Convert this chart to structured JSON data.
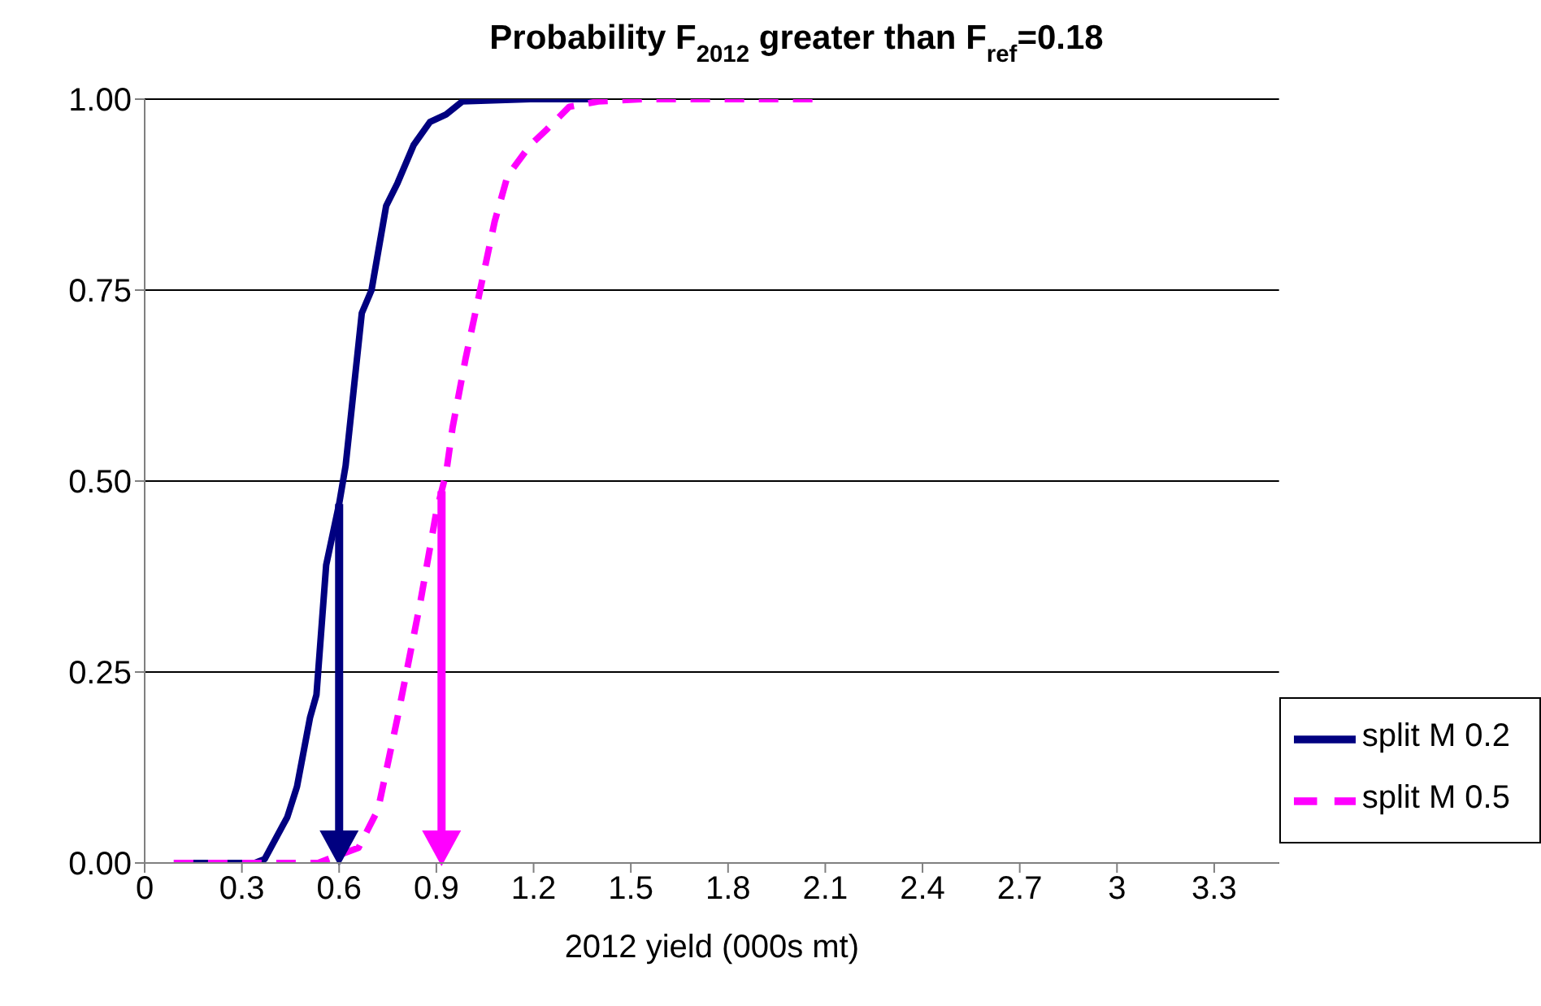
{
  "chart_data": {
    "type": "line",
    "title": "Probability F$_{2012}$ greater than F$_{ref}$=0.18",
    "xlabel": "2012 yield  (000s mt)",
    "xlim": [
      0,
      3.5
    ],
    "xticks": [
      0,
      0.3,
      0.6,
      0.9,
      1.2,
      1.5,
      1.8,
      2.1,
      2.4,
      2.7,
      3,
      3.3
    ],
    "ylim": [
      0,
      1
    ],
    "yticks": [
      {
        "value": 0,
        "label": "0.00"
      },
      {
        "value": 0.25,
        "label": "0.25"
      },
      {
        "value": 0.5,
        "label": "0.50"
      },
      {
        "value": 0.75,
        "label": "0.75"
      },
      {
        "value": 1,
        "label": "1.00"
      }
    ],
    "grid": "y",
    "legend": "bottom right",
    "marker": "none",
    "series": [
      {
        "name": "split M 0.2",
        "color": "#000080",
        "line_style": "solid",
        "x": [
          0.09,
          0.34,
          0.37,
          0.44,
          0.47,
          0.51,
          0.53,
          0.56,
          0.6,
          0.62,
          0.67,
          0.7,
          0.745,
          0.78,
          0.83,
          0.88,
          0.93,
          0.98,
          1.19,
          1.4
        ],
        "values": [
          0,
          0,
          0.005,
          0.06,
          0.1,
          0.19,
          0.22,
          0.39,
          0.47,
          0.52,
          0.72,
          0.75,
          0.86,
          0.89,
          0.94,
          0.97,
          0.98,
          0.997,
          1,
          1
        ]
      },
      {
        "name": "split M 0.5",
        "color": "#ff00ff",
        "line_style": "dashed",
        "x": [
          0.09,
          0.535,
          0.66,
          0.72,
          0.78,
          0.85,
          0.9,
          0.93,
          0.95,
          0.99,
          1.04,
          1.08,
          1.12,
          1.19,
          1.24,
          1.31,
          1.4,
          1.54,
          2.1
        ],
        "values": [
          0,
          0,
          0.02,
          0.07,
          0.19,
          0.34,
          0.46,
          0.51,
          0.57,
          0.66,
          0.76,
          0.84,
          0.9,
          0.94,
          0.96,
          0.99,
          0.997,
          1,
          1
        ]
      }
    ],
    "ref_lines": [
      {
        "axis": "x",
        "value": 0.6,
        "color": "#000080"
      },
      {
        "axis": "x",
        "value": 0.916,
        "color": "#ff00ff"
      }
    ]
  }
}
